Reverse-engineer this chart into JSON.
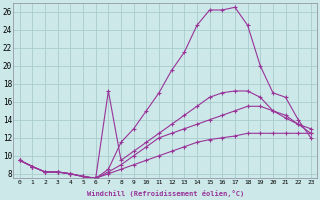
{
  "xlabel": "Windchill (Refroidissement éolien,°C)",
  "background_color": "#cce8e8",
  "grid_color": "#aacccc",
  "line_color": "#993399",
  "xlim": [
    -0.5,
    23.5
  ],
  "ylim": [
    7.5,
    27.0
  ],
  "yticks": [
    8,
    10,
    12,
    14,
    16,
    18,
    20,
    22,
    24,
    26
  ],
  "xticks": [
    0,
    1,
    2,
    3,
    4,
    5,
    6,
    7,
    8,
    9,
    10,
    11,
    12,
    13,
    14,
    15,
    16,
    17,
    18,
    19,
    20,
    21,
    22,
    23
  ],
  "lines": [
    {
      "x": [
        0,
        1,
        2,
        3,
        4,
        5,
        6,
        7,
        8,
        9,
        10,
        11,
        12,
        13,
        14,
        15,
        16,
        17,
        18,
        19,
        20,
        21,
        22,
        23
      ],
      "y": [
        9.5,
        8.8,
        8.2,
        8.2,
        8.0,
        7.7,
        7.5,
        8.5,
        11.5,
        13.0,
        15.0,
        17.0,
        19.5,
        21.5,
        24.5,
        26.2,
        26.2,
        26.5,
        24.5,
        20.0,
        17.0,
        16.5,
        14.0,
        12.0
      ]
    },
    {
      "x": [
        0,
        1,
        2,
        3,
        4,
        5,
        6,
        7,
        8,
        9,
        10,
        11,
        12,
        13,
        14,
        15,
        16,
        17,
        18,
        19,
        20,
        21,
        22,
        23
      ],
      "y": [
        9.5,
        8.8,
        8.2,
        8.2,
        8.0,
        7.7,
        7.5,
        17.2,
        9.5,
        10.5,
        11.5,
        12.5,
        13.5,
        14.5,
        15.5,
        16.5,
        17.0,
        17.2,
        17.2,
        16.5,
        15.0,
        14.5,
        13.5,
        12.5
      ]
    },
    {
      "x": [
        0,
        1,
        2,
        3,
        4,
        5,
        6,
        7,
        8,
        9,
        10,
        11,
        12,
        13,
        14,
        15,
        16,
        17,
        18,
        19,
        20,
        21,
        22,
        23
      ],
      "y": [
        9.5,
        8.8,
        8.2,
        8.2,
        8.0,
        7.7,
        7.5,
        8.2,
        9.0,
        10.0,
        11.0,
        12.0,
        12.5,
        13.0,
        13.5,
        14.0,
        14.5,
        15.0,
        15.5,
        15.5,
        15.0,
        14.2,
        13.5,
        13.0
      ]
    },
    {
      "x": [
        0,
        1,
        2,
        3,
        4,
        5,
        6,
        7,
        8,
        9,
        10,
        11,
        12,
        13,
        14,
        15,
        16,
        17,
        18,
        19,
        20,
        21,
        22,
        23
      ],
      "y": [
        9.5,
        8.8,
        8.2,
        8.2,
        8.0,
        7.7,
        7.5,
        8.0,
        8.5,
        9.0,
        9.5,
        10.0,
        10.5,
        11.0,
        11.5,
        11.8,
        12.0,
        12.2,
        12.5,
        12.5,
        12.5,
        12.5,
        12.5,
        12.5
      ]
    }
  ]
}
